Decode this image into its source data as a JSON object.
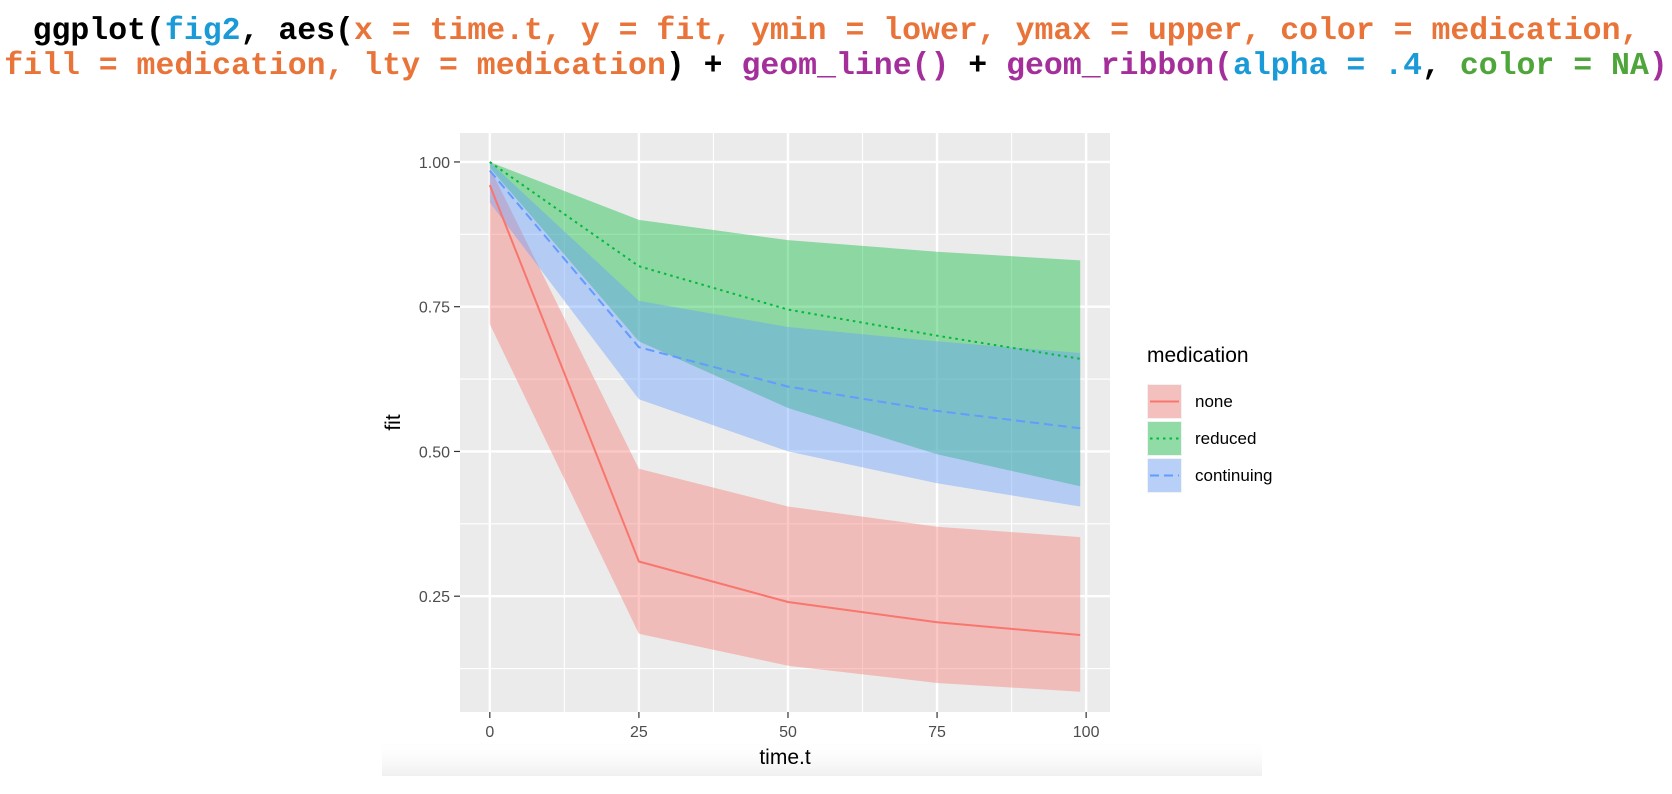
{
  "code": {
    "lines": [
      [
        {
          "text": "ggplot(",
          "color": "#000000"
        },
        {
          "text": "fig2",
          "color": "#1a9ad6"
        },
        {
          "text": ", aes(",
          "color": "#000000"
        },
        {
          "text": "x = time.t, y = fit, ymin = lower, ymax = upper, color = medication,",
          "color": "#e9743a"
        }
      ],
      [
        {
          "text": "fill = medication, lty = medication",
          "color": "#e9743a"
        },
        {
          "text": ") + ",
          "color": "#000000"
        },
        {
          "text": "geom_line()",
          "color": "#a42f9a"
        },
        {
          "text": " + ",
          "color": "#000000"
        },
        {
          "text": "geom_ribbon(",
          "color": "#a42f9a"
        },
        {
          "text": "alpha = .4",
          "color": "#1a9ad6"
        },
        {
          "text": ", ",
          "color": "#000000"
        },
        {
          "text": "color = NA",
          "color": "#4ea63a"
        },
        {
          "text": ")",
          "color": "#a42f9a"
        }
      ]
    ]
  },
  "chart_data": {
    "type": "line",
    "title": "",
    "xlabel": "time.t",
    "ylabel": "fit",
    "xlim": [
      -5,
      104
    ],
    "ylim": [
      0.05,
      1.05
    ],
    "xticks": [
      0,
      25,
      50,
      75,
      100
    ],
    "xtick_labels": [
      "0",
      "25",
      "50",
      "75",
      "100"
    ],
    "yticks": [
      0.25,
      0.5,
      0.75,
      1.0
    ],
    "ytick_labels": [
      "0.25",
      "0.50",
      "0.75",
      "1.00"
    ],
    "grid": true,
    "ribbon_alpha": 0.4,
    "legend": {
      "title": "medication",
      "position": "right"
    },
    "series": [
      {
        "name": "none",
        "color": "#f8766d",
        "linetype": "solid",
        "x": [
          0,
          25,
          50,
          75,
          99
        ],
        "y": [
          0.96,
          0.31,
          0.24,
          0.205,
          0.183
        ],
        "lower": [
          0.72,
          0.185,
          0.13,
          0.1,
          0.085
        ],
        "upper": [
          0.99,
          0.47,
          0.405,
          0.37,
          0.352
        ]
      },
      {
        "name": "reduced",
        "color": "#00ba38",
        "linetype": "dotted",
        "x": [
          0,
          25,
          50,
          75,
          99
        ],
        "y": [
          1.0,
          0.82,
          0.745,
          0.7,
          0.66
        ],
        "lower": [
          0.99,
          0.69,
          0.575,
          0.495,
          0.44
        ],
        "upper": [
          1.0,
          0.9,
          0.865,
          0.845,
          0.83
        ]
      },
      {
        "name": "continuing",
        "color": "#619cff",
        "linetype": "dashed",
        "x": [
          0,
          25,
          50,
          75,
          99
        ],
        "y": [
          0.985,
          0.68,
          0.612,
          0.57,
          0.54
        ],
        "lower": [
          0.93,
          0.59,
          0.5,
          0.445,
          0.405
        ],
        "upper": [
          1.0,
          0.76,
          0.715,
          0.69,
          0.67
        ]
      }
    ]
  }
}
